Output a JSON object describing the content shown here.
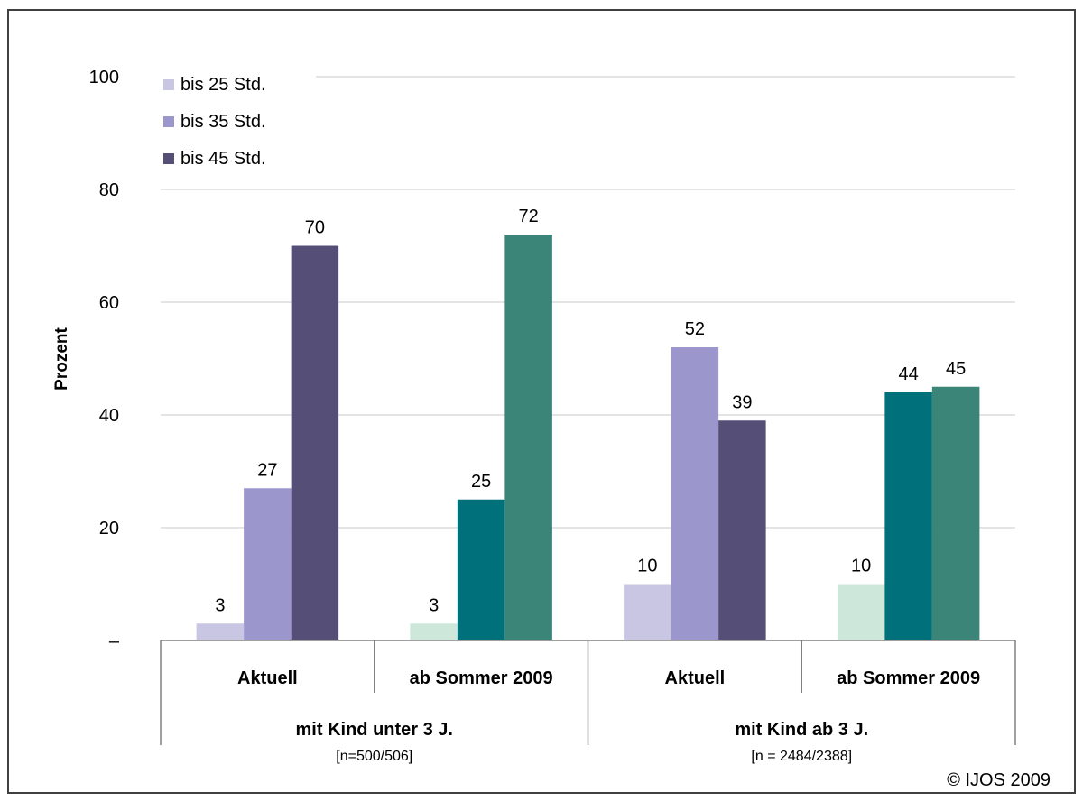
{
  "chart_data": {
    "type": "bar",
    "ylabel": "Prozent",
    "ylim": [
      0,
      100
    ],
    "yticks": [
      {
        "value": 0,
        "label": "–"
      },
      {
        "value": 20,
        "label": "20"
      },
      {
        "value": 40,
        "label": "40"
      },
      {
        "value": 60,
        "label": "60"
      },
      {
        "value": 80,
        "label": "80"
      },
      {
        "value": 100,
        "label": "100"
      }
    ],
    "grid": true,
    "legend_position": "top-left",
    "legend": [
      {
        "name": "bis 25 Std.",
        "color": "#c8c6e2"
      },
      {
        "name": "bis 35 Std.",
        "color": "#9b97cc"
      },
      {
        "name": "bis 45 Std.",
        "color": "#554f77"
      }
    ],
    "groups": [
      {
        "label": "mit Kind unter 3 J.",
        "note": "[n=500/506]",
        "categories": [
          {
            "label": "Aktuell",
            "values": [
              3,
              27,
              70
            ],
            "display": [
              "3",
              "27",
              "70"
            ],
            "colors": [
              "#c8c6e2",
              "#9b97cc",
              "#554f77"
            ]
          },
          {
            "label": "ab Sommer 2009",
            "values": [
              3,
              25,
              72
            ],
            "display": [
              "3",
              "25",
              "72"
            ],
            "colors": [
              "#cde8da",
              "#00717a",
              "#3a8478"
            ]
          }
        ]
      },
      {
        "label": "mit Kind ab 3 J.",
        "note": "[n = 2484/2388]",
        "categories": [
          {
            "label": "Aktuell",
            "values": [
              10,
              52,
              39
            ],
            "display": [
              "10",
              "52",
              "39"
            ],
            "colors": [
              "#c8c6e2",
              "#9b97cc",
              "#554f77"
            ]
          },
          {
            "label": "ab Sommer 2009",
            "values": [
              10,
              44,
              45
            ],
            "display": [
              "10",
              "44",
              "45"
            ],
            "colors": [
              "#cde8da",
              "#00717a",
              "#3a8478"
            ]
          }
        ]
      }
    ]
  },
  "copyright": "© IJOS 2009"
}
